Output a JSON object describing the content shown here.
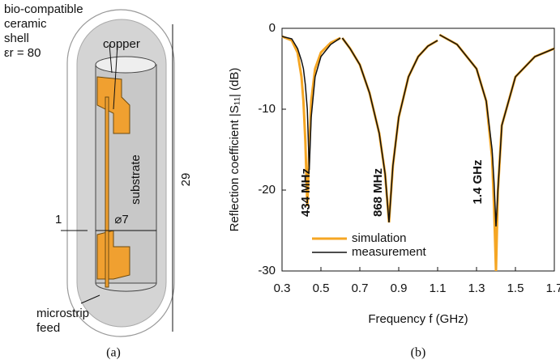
{
  "panel_a": {
    "caption": "(a)",
    "shell_label": [
      "bio-compatible",
      "ceramic",
      "shell",
      "εr = 80"
    ],
    "copper_label": "copper",
    "substrate_label": "substrate",
    "length_label": "29",
    "diameter_label": "⌀7",
    "marker_label": "1",
    "feed_label": [
      "microstrip",
      "feed"
    ]
  },
  "chart_data": {
    "type": "line",
    "caption": "(b)",
    "x_label": "Frequency f (GHz)",
    "y_label": "Reflection coefficient |S₁₁| (dB)",
    "annotations": [
      "434 MHz",
      "868 MHz",
      "1.4 GHz"
    ],
    "x": [
      0.3,
      0.35,
      0.38,
      0.4,
      0.41,
      0.42,
      0.43,
      0.44,
      0.45,
      0.47,
      0.5,
      0.55,
      0.6,
      0.605,
      0.61,
      0.65,
      0.7,
      0.75,
      0.8,
      0.83,
      0.85,
      0.87,
      0.9,
      0.95,
      1.0,
      1.05,
      1.1,
      1.105,
      1.11,
      1.2,
      1.3,
      1.35,
      1.38,
      1.39,
      1.4,
      1.41,
      1.43,
      1.5,
      1.6,
      1.7
    ],
    "series": [
      {
        "name": "simulation",
        "color": "#f5a623",
        "values": [
          -1,
          -1.5,
          -3,
          -6,
          -9,
          -14,
          -22,
          -15,
          -9,
          -5,
          -3,
          -1.8,
          -1.2,
          null,
          -1.2,
          -2.5,
          -4.5,
          -8,
          -13,
          -18,
          -24,
          -17,
          -11,
          -6,
          -3.5,
          -2.2,
          -1.5,
          null,
          -0.8,
          -2,
          -5,
          -9,
          -16,
          -22,
          -30,
          -20,
          -12,
          -6,
          -3.5,
          -2.5
        ]
      },
      {
        "name": "measurement",
        "color": "#111111",
        "values": [
          -1,
          -1.3,
          -2.5,
          -4,
          -5,
          -7,
          -10,
          -17.5,
          -11,
          -6,
          -3.5,
          -2,
          -1.2,
          null,
          -1.2,
          -2.5,
          -4.5,
          -8,
          -13,
          -18,
          -24,
          -17,
          -11,
          -6,
          -3.5,
          -2.2,
          -1.5,
          null,
          -0.8,
          -2,
          -5,
          -9,
          -15,
          -19,
          -24.5,
          -20,
          -12,
          -6,
          -3.5,
          -2.5
        ]
      }
    ],
    "xlim": [
      0.3,
      1.7
    ],
    "xticks": [
      0.3,
      0.5,
      0.7,
      0.9,
      1.1,
      1.3,
      1.5,
      1.7
    ],
    "ylim": [
      -30,
      0
    ],
    "yticks": [
      0,
      -10,
      -20,
      -30
    ],
    "grid": false,
    "legend": "lower-left"
  }
}
